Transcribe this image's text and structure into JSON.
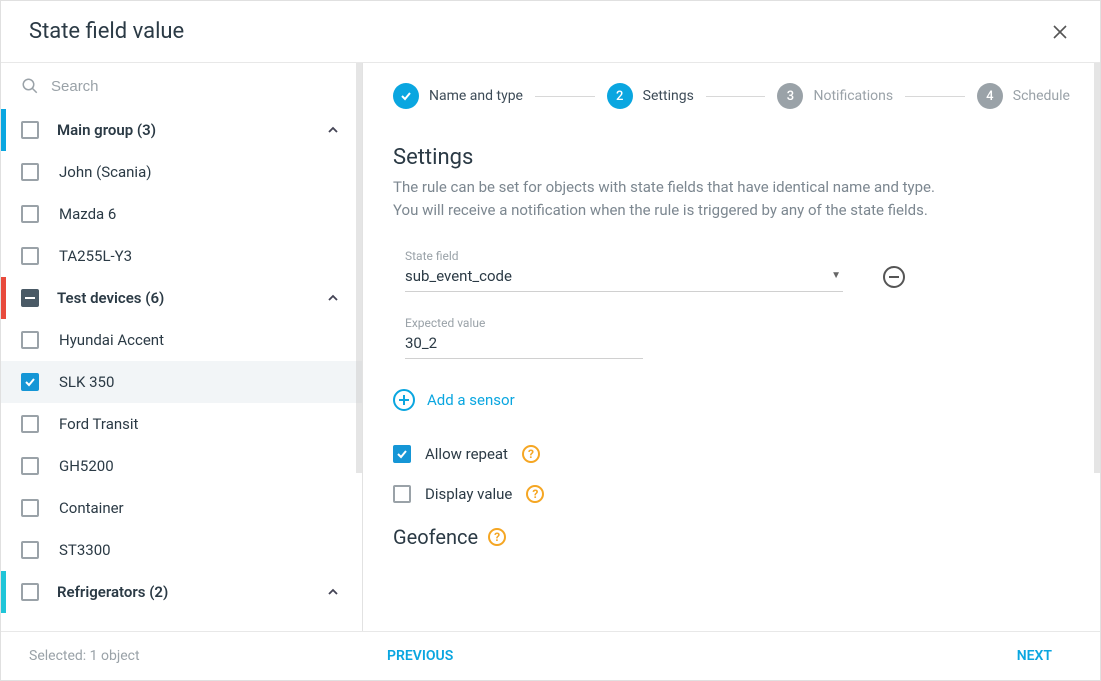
{
  "header": {
    "title": "State field value"
  },
  "search": {
    "placeholder": "Search"
  },
  "tree": {
    "groups": [
      {
        "label": "Main group (3)",
        "state": "unchecked",
        "bar": "blue",
        "expanded": true
      },
      {
        "label": "John (Scania)",
        "state": "unchecked",
        "child": true
      },
      {
        "label": "Mazda 6",
        "state": "unchecked",
        "child": true
      },
      {
        "label": "TA255L-Y3",
        "state": "unchecked",
        "child": true
      },
      {
        "label": "Test devices (6)",
        "state": "indeterminate",
        "bar": "red",
        "expanded": true
      },
      {
        "label": "Hyundai Accent",
        "state": "unchecked",
        "child": true
      },
      {
        "label": "SLK 350",
        "state": "checked",
        "child": true,
        "selected": true
      },
      {
        "label": "Ford Transit",
        "state": "unchecked",
        "child": true
      },
      {
        "label": "GH5200",
        "state": "unchecked",
        "child": true
      },
      {
        "label": "Container",
        "state": "unchecked",
        "child": true
      },
      {
        "label": "ST3300",
        "state": "unchecked",
        "child": true
      },
      {
        "label": "Refrigerators (2)",
        "state": "unchecked",
        "bar": "cyan",
        "expanded": true
      }
    ]
  },
  "stepper": {
    "steps": [
      {
        "label": "Name and type",
        "state": "done"
      },
      {
        "label": "Settings",
        "num": "2",
        "state": "active"
      },
      {
        "label": "Notifications",
        "num": "3",
        "state": "pending"
      },
      {
        "label": "Schedule",
        "num": "4",
        "state": "pending"
      }
    ]
  },
  "settings": {
    "title": "Settings",
    "description": "The rule can be set for objects with state fields that have identical name and type.\nYou will receive a notification when the rule is triggered by any of the state fields.",
    "state_field_label": "State field",
    "state_field_value": "sub_event_code",
    "expected_value_label": "Expected value",
    "expected_value": "30_2",
    "add_sensor": "Add a sensor",
    "allow_repeat": "Allow repeat",
    "display_value": "Display value",
    "geofence_title": "Geofence"
  },
  "footer": {
    "status": "Selected: 1 object",
    "previous": "PREVIOUS",
    "next": "NEXT"
  },
  "colors": {
    "primary": "#0aa6e0",
    "muted": "#9aa2a8",
    "text": "#2b3a45",
    "warning": "#f5a623",
    "red": "#e84a3c",
    "cyan": "#20c5d8"
  }
}
